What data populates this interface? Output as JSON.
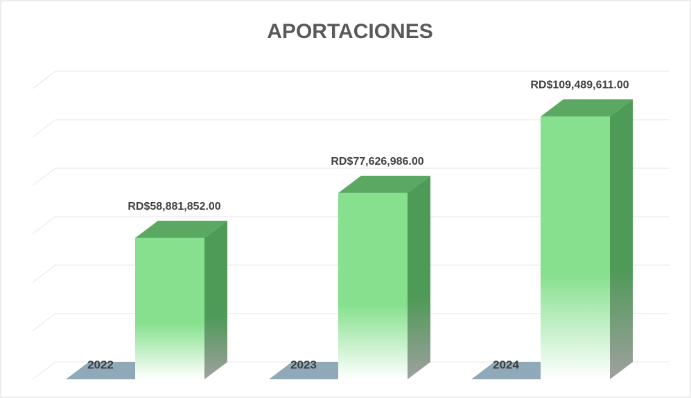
{
  "chart_data": {
    "type": "bar3d",
    "title": "APORTACIONES",
    "categories": [
      "2022",
      "2023",
      "2024"
    ],
    "values": [
      58881852,
      77626986,
      109489611
    ],
    "value_labels": [
      "RD$58,881,852.00",
      "RD$77,626,986.00",
      "RD$109,489,611.00"
    ],
    "color": "#86e08e",
    "ylim": [
      0,
      120000000
    ]
  }
}
